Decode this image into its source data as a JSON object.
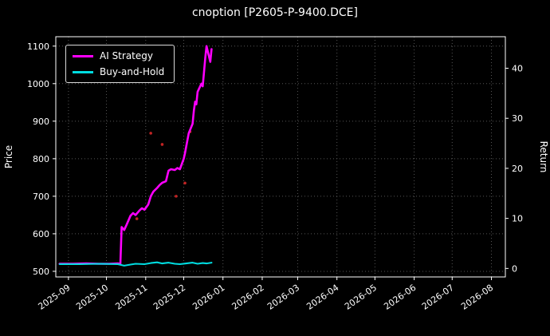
{
  "chart_data": {
    "type": "line",
    "title": "cnoption [P2605-P-9400.DCE]",
    "ylabel_left": "Price",
    "ylabel_right": "Return",
    "ylim_left": [
      485,
      1125
    ],
    "yticks_left": [
      500,
      600,
      700,
      800,
      900,
      1000,
      1100
    ],
    "ylim_right": [
      -1.7,
      46.3
    ],
    "yticks_right": [
      0,
      10,
      20,
      30,
      40
    ],
    "xlim": [
      "2025-08-22",
      "2026-08-12"
    ],
    "xticks": [
      {
        "date": "2025-09-01",
        "label": "2025-09"
      },
      {
        "date": "2025-10-01",
        "label": "2025-10"
      },
      {
        "date": "2025-11-01",
        "label": "2025-11"
      },
      {
        "date": "2025-12-01",
        "label": "2025-12"
      },
      {
        "date": "2026-01-01",
        "label": "2026-01"
      },
      {
        "date": "2026-02-01",
        "label": "2026-02"
      },
      {
        "date": "2026-03-01",
        "label": "2026-03"
      },
      {
        "date": "2026-04-01",
        "label": "2026-04"
      },
      {
        "date": "2026-05-01",
        "label": "2026-05"
      },
      {
        "date": "2026-06-01",
        "label": "2026-06"
      },
      {
        "date": "2026-07-01",
        "label": "2026-07"
      },
      {
        "date": "2026-08-01",
        "label": "2026-08"
      }
    ],
    "grid": {
      "on": true,
      "style": "dotted",
      "color": "#555555"
    },
    "legend_position": "upper-left",
    "series": [
      {
        "name": "AI Strategy",
        "color": "#ff00ff",
        "axis": "left",
        "x": [
          "2025-08-25",
          "2025-09-05",
          "2025-09-15",
          "2025-09-25",
          "2025-10-03",
          "2025-10-10",
          "2025-10-12",
          "2025-10-13",
          "2025-10-15",
          "2025-10-17",
          "2025-10-20",
          "2025-10-22",
          "2025-10-24",
          "2025-10-27",
          "2025-10-29",
          "2025-10-31",
          "2025-11-03",
          "2025-11-05",
          "2025-11-07",
          "2025-11-10",
          "2025-11-12",
          "2025-11-14",
          "2025-11-17",
          "2025-11-19",
          "2025-11-21",
          "2025-11-24",
          "2025-11-26",
          "2025-11-28",
          "2025-12-01",
          "2025-12-02",
          "2025-12-03",
          "2025-12-04",
          "2025-12-05",
          "2025-12-08",
          "2025-12-09",
          "2025-12-10",
          "2025-12-11",
          "2025-12-12",
          "2025-12-15",
          "2025-12-16",
          "2025-12-17",
          "2025-12-18",
          "2025-12-19",
          "2025-12-22",
          "2025-12-23"
        ],
        "y": [
          520,
          520,
          521,
          520,
          520,
          521,
          520,
          618,
          610,
          625,
          648,
          655,
          650,
          662,
          668,
          664,
          678,
          700,
          712,
          722,
          730,
          736,
          740,
          768,
          772,
          770,
          775,
          772,
          800,
          815,
          832,
          850,
          868,
          893,
          928,
          952,
          945,
          978,
          1000,
          993,
          1030,
          1068,
          1100,
          1058,
          1092
        ]
      },
      {
        "name": "Buy-and-Hold",
        "color": "#00dce0",
        "axis": "left",
        "x": [
          "2025-08-25",
          "2025-09-10",
          "2025-09-25",
          "2025-10-10",
          "2025-10-15",
          "2025-10-20",
          "2025-10-24",
          "2025-10-31",
          "2025-11-05",
          "2025-11-10",
          "2025-11-14",
          "2025-11-19",
          "2025-11-24",
          "2025-11-28",
          "2025-12-03",
          "2025-12-08",
          "2025-12-12",
          "2025-12-16",
          "2025-12-19",
          "2025-12-23"
        ],
        "y": [
          519,
          519,
          520,
          519,
          515,
          518,
          520,
          519,
          522,
          524,
          521,
          523,
          520,
          519,
          521,
          523,
          520,
          522,
          521,
          523
        ]
      }
    ],
    "markers": {
      "name": "trade-markers",
      "color": "#c22323",
      "points": [
        {
          "x": "2025-10-25",
          "y": 640
        },
        {
          "x": "2025-11-05",
          "y": 868
        },
        {
          "x": "2025-11-14",
          "y": 838
        },
        {
          "x": "2025-11-25",
          "y": 700
        },
        {
          "x": "2025-12-02",
          "y": 735
        },
        {
          "x": "2025-12-06",
          "y": 872
        }
      ]
    }
  }
}
